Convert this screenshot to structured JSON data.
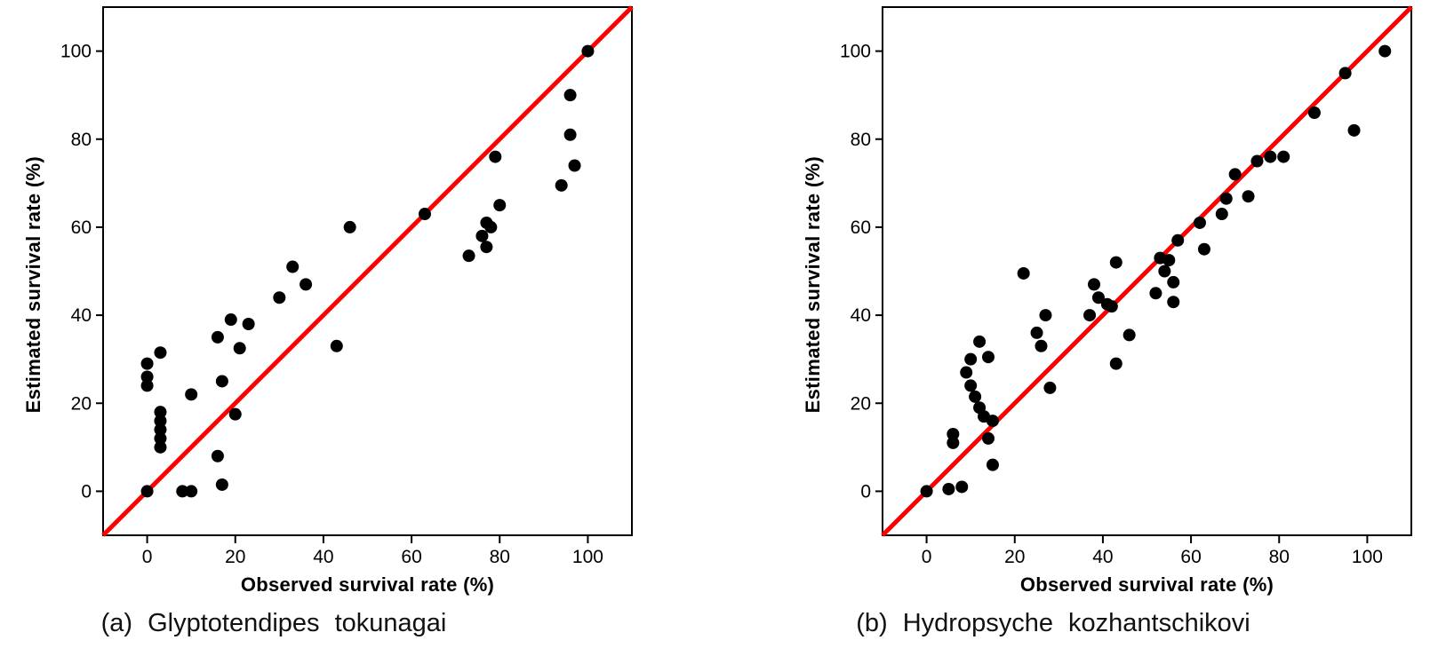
{
  "page": {
    "background": "#ffffff"
  },
  "chart_data": [
    {
      "type": "scatter",
      "panel": "a",
      "caption": "(a) Glyptotendipes tokunagai",
      "xlabel": "Observed survival rate (%)",
      "ylabel": "Estimated survival rate (%)",
      "xlim": [
        -10,
        110
      ],
      "ylim": [
        -10,
        110
      ],
      "ticks": [
        0,
        20,
        40,
        60,
        80,
        100
      ],
      "grid": false,
      "legend": "none",
      "point_color": "#000000",
      "reference_line": {
        "type": "identity",
        "description": "1:1 line y = x",
        "color": "#ff0000"
      },
      "points": [
        [
          0,
          0
        ],
        [
          0,
          24
        ],
        [
          0,
          26
        ],
        [
          0,
          29
        ],
        [
          3,
          31.5
        ],
        [
          3,
          18
        ],
        [
          3,
          16
        ],
        [
          3,
          14
        ],
        [
          3,
          12
        ],
        [
          3,
          10
        ],
        [
          8,
          0
        ],
        [
          10,
          0
        ],
        [
          10,
          22
        ],
        [
          16,
          35
        ],
        [
          16,
          8
        ],
        [
          17,
          1.5
        ],
        [
          17,
          25
        ],
        [
          19,
          39
        ],
        [
          21,
          32.5
        ],
        [
          20,
          17.5
        ],
        [
          23,
          38
        ],
        [
          30,
          44
        ],
        [
          33,
          51
        ],
        [
          36,
          47
        ],
        [
          43,
          33
        ],
        [
          46,
          60
        ],
        [
          63,
          63
        ],
        [
          73,
          53.5
        ],
        [
          76,
          58
        ],
        [
          77,
          61
        ],
        [
          77,
          55.5
        ],
        [
          78,
          60
        ],
        [
          79,
          76
        ],
        [
          80,
          65
        ],
        [
          94,
          69.5
        ],
        [
          96,
          90
        ],
        [
          96,
          81
        ],
        [
          97,
          74
        ],
        [
          100,
          100
        ]
      ]
    },
    {
      "type": "scatter",
      "panel": "b",
      "caption": "(b) Hydropsyche kozhantschikovi",
      "xlabel": "Observed survival rate (%)",
      "ylabel": "Estimated survival rate (%)",
      "xlim": [
        -10,
        110
      ],
      "ylim": [
        -10,
        110
      ],
      "ticks": [
        0,
        20,
        40,
        60,
        80,
        100
      ],
      "grid": false,
      "legend": "none",
      "point_color": "#000000",
      "reference_line": {
        "type": "identity",
        "description": "1:1 line y = x",
        "color": "#ff0000"
      },
      "points": [
        [
          0,
          0
        ],
        [
          5,
          0.5
        ],
        [
          6,
          11
        ],
        [
          6,
          13
        ],
        [
          8,
          1
        ],
        [
          9,
          27
        ],
        [
          10,
          24
        ],
        [
          10,
          30
        ],
        [
          11,
          21.5
        ],
        [
          12,
          34
        ],
        [
          12,
          19
        ],
        [
          13,
          17
        ],
        [
          14,
          30.5
        ],
        [
          14,
          12
        ],
        [
          15,
          16
        ],
        [
          15,
          6
        ],
        [
          22,
          49.5
        ],
        [
          25,
          36
        ],
        [
          26,
          33
        ],
        [
          27,
          40
        ],
        [
          28,
          23.5
        ],
        [
          37,
          40
        ],
        [
          38,
          47
        ],
        [
          39,
          44
        ],
        [
          41,
          42.5
        ],
        [
          42,
          42
        ],
        [
          43,
          52
        ],
        [
          43,
          29
        ],
        [
          46,
          35.5
        ],
        [
          52,
          45
        ],
        [
          53,
          53
        ],
        [
          54,
          50
        ],
        [
          55,
          52.5
        ],
        [
          56,
          43
        ],
        [
          56,
          47.5
        ],
        [
          57,
          57
        ],
        [
          62,
          61
        ],
        [
          63,
          55
        ],
        [
          67,
          63
        ],
        [
          68,
          66.5
        ],
        [
          70,
          72
        ],
        [
          73,
          67
        ],
        [
          75,
          75
        ],
        [
          78,
          76
        ],
        [
          81,
          76
        ],
        [
          88,
          86
        ],
        [
          95,
          95
        ],
        [
          97,
          82
        ],
        [
          104,
          100
        ]
      ]
    }
  ]
}
